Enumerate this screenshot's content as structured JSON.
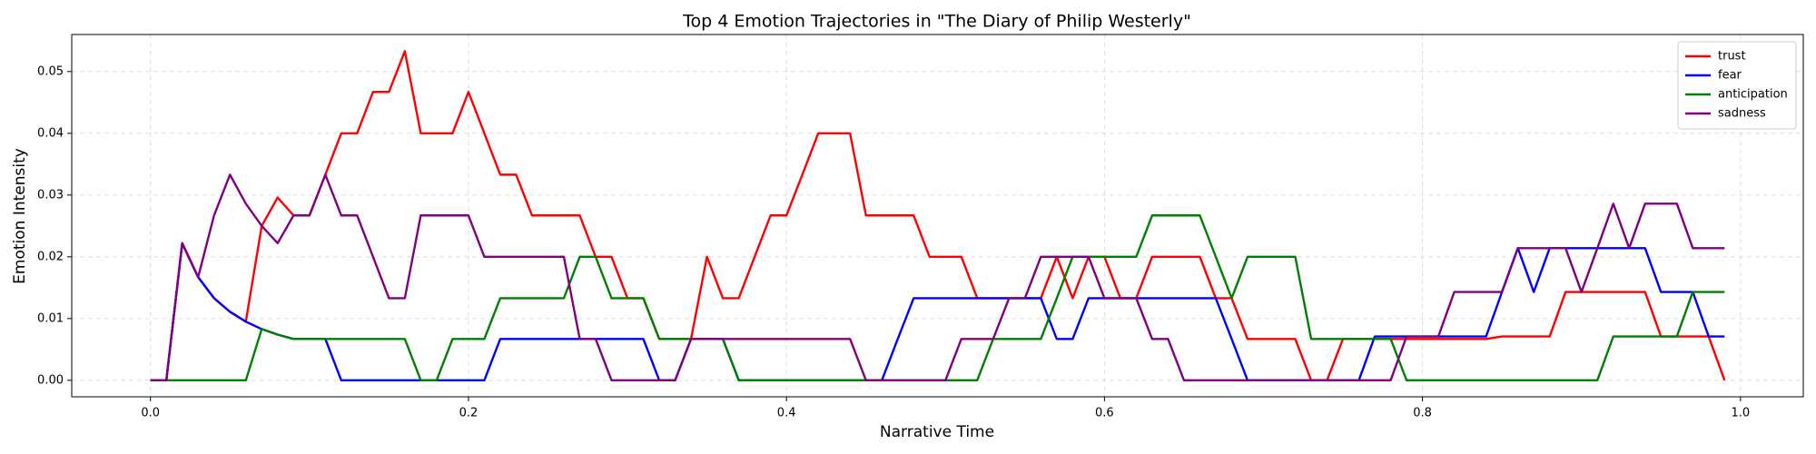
{
  "chart_data": {
    "type": "line",
    "title": "Top 4 Emotion Trajectories in \"The Diary of Philip Westerly\"",
    "xlabel": "Narrative Time",
    "ylabel": "Emotion Intensity",
    "x": [
      0,
      0.01,
      0.02,
      0.03,
      0.04,
      0.05,
      0.06,
      0.07,
      0.08,
      0.09,
      0.1,
      0.11,
      0.12,
      0.13,
      0.14,
      0.15,
      0.16,
      0.17,
      0.18,
      0.19,
      0.2,
      0.21,
      0.22,
      0.23,
      0.24,
      0.25,
      0.26,
      0.27,
      0.28,
      0.29,
      0.3,
      0.31,
      0.32,
      0.33,
      0.34,
      0.35,
      0.36,
      0.37,
      0.38,
      0.39,
      0.4,
      0.41,
      0.42,
      0.43,
      0.44,
      0.45,
      0.46,
      0.47,
      0.48,
      0.49,
      0.5,
      0.51,
      0.52,
      0.53,
      0.54,
      0.55,
      0.56,
      0.57,
      0.58,
      0.59,
      0.6,
      0.61,
      0.62,
      0.63,
      0.64,
      0.65,
      0.66,
      0.67,
      0.68,
      0.69,
      0.7,
      0.71,
      0.72,
      0.73,
      0.74,
      0.75,
      0.76,
      0.77,
      0.78,
      0.79,
      0.8,
      0.81,
      0.82,
      0.83,
      0.84,
      0.85,
      0.86,
      0.87,
      0.88,
      0.89,
      0.9,
      0.91,
      0.92,
      0.93,
      0.94,
      0.95,
      0.96,
      0.97,
      0.98,
      0.99
    ],
    "series": [
      {
        "name": "trust",
        "color": "#ff0000",
        "values": [
          0,
          0,
          0.0222,
          0.0167,
          0.0133,
          0.0111,
          0.0095,
          0.025,
          0.0296,
          0.0267,
          0.0267,
          0.0333,
          0.04,
          0.04,
          0.0467,
          0.0467,
          0.0533,
          0.04,
          0.04,
          0.04,
          0.0467,
          0.04,
          0.0333,
          0.0333,
          0.0267,
          0.0267,
          0.0267,
          0.0267,
          0.02,
          0.02,
          0.0133,
          0.0133,
          0.0067,
          0.0067,
          0.0067,
          0.02,
          0.0133,
          0.0133,
          0.02,
          0.0267,
          0.0267,
          0.0333,
          0.04,
          0.04,
          0.04,
          0.0267,
          0.0267,
          0.0267,
          0.0267,
          0.02,
          0.02,
          0.02,
          0.0133,
          0.0133,
          0.0133,
          0.0133,
          0.0133,
          0.02,
          0.0133,
          0.02,
          0.02,
          0.0133,
          0.0133,
          0.02,
          0.02,
          0.02,
          0.02,
          0.0133,
          0.0133,
          0.0067,
          0.0067,
          0.0067,
          0.0067,
          0,
          0,
          0.0067,
          0.0067,
          0.0067,
          0.0067,
          0.0067,
          0.0067,
          0.0067,
          0.0067,
          0.0067,
          0.0067,
          0.0071,
          0.0071,
          0.0071,
          0.0071,
          0.0143,
          0.0143,
          0.0143,
          0.0143,
          0.0143,
          0.0143,
          0.0071,
          0.0071,
          0.0071,
          0.0071,
          0
        ]
      },
      {
        "name": "fear",
        "color": "#0000ff",
        "values": [
          0,
          0,
          0.0222,
          0.0167,
          0.0133,
          0.0111,
          0.0095,
          0.0083,
          0.0074,
          0.0067,
          0.0067,
          0.0067,
          0,
          0,
          0,
          0,
          0,
          0,
          0,
          0,
          0,
          0,
          0.0067,
          0.0067,
          0.0067,
          0.0067,
          0.0067,
          0.0067,
          0.0067,
          0.0067,
          0.0067,
          0.0067,
          0,
          0,
          0.0067,
          0.0067,
          0.0067,
          0,
          0,
          0,
          0,
          0,
          0,
          0,
          0,
          0,
          0,
          0.0067,
          0.0133,
          0.0133,
          0.0133,
          0.0133,
          0.0133,
          0.0133,
          0.0133,
          0.0133,
          0.0133,
          0.0067,
          0.0067,
          0.0133,
          0.0133,
          0.0133,
          0.0133,
          0.0133,
          0.0133,
          0.0133,
          0.0133,
          0.0133,
          0.0067,
          0,
          0,
          0,
          0,
          0,
          0,
          0,
          0,
          0.0071,
          0.0071,
          0.0071,
          0.0071,
          0.0071,
          0.0071,
          0.0071,
          0.0071,
          0.0143,
          0.0214,
          0.0143,
          0.0214,
          0.0214,
          0.0214,
          0.0214,
          0.0214,
          0.0214,
          0.0214,
          0.0143,
          0.0143,
          0.0143,
          0.0071,
          0.0071
        ]
      },
      {
        "name": "anticipation",
        "color": "#008000",
        "values": [
          0,
          0,
          0,
          0,
          0,
          0,
          0,
          0.0083,
          0.0074,
          0.0067,
          0.0067,
          0.0067,
          0.0067,
          0.0067,
          0.0067,
          0.0067,
          0.0067,
          0,
          0,
          0.0067,
          0.0067,
          0.0067,
          0.0133,
          0.0133,
          0.0133,
          0.0133,
          0.0133,
          0.02,
          0.02,
          0.0133,
          0.0133,
          0.0133,
          0.0067,
          0.0067,
          0.0067,
          0.0067,
          0.0067,
          0,
          0,
          0,
          0,
          0,
          0,
          0,
          0,
          0,
          0,
          0,
          0,
          0,
          0,
          0,
          0,
          0.0067,
          0.0067,
          0.0067,
          0.0067,
          0.0133,
          0.02,
          0.02,
          0.02,
          0.02,
          0.02,
          0.0267,
          0.0267,
          0.0267,
          0.0267,
          0.02,
          0.0133,
          0.02,
          0.02,
          0.02,
          0.02,
          0.0067,
          0.0067,
          0.0067,
          0.0067,
          0.0067,
          0.0067,
          0,
          0,
          0,
          0,
          0,
          0,
          0,
          0,
          0,
          0,
          0,
          0,
          0,
          0.0071,
          0.0071,
          0.0071,
          0.0071,
          0.0071,
          0.0143,
          0.0143,
          0.0143
        ]
      },
      {
        "name": "sadness",
        "color": "#800080",
        "values": [
          0,
          0,
          0.0222,
          0.0167,
          0.0267,
          0.0333,
          0.0286,
          0.025,
          0.0222,
          0.0267,
          0.0267,
          0.0333,
          0.0267,
          0.0267,
          0.02,
          0.0133,
          0.0133,
          0.0267,
          0.0267,
          0.0267,
          0.0267,
          0.02,
          0.02,
          0.02,
          0.02,
          0.02,
          0.02,
          0.0067,
          0.0067,
          0,
          0,
          0,
          0,
          0,
          0.0067,
          0.0067,
          0.0067,
          0.0067,
          0.0067,
          0.0067,
          0.0067,
          0.0067,
          0.0067,
          0.0067,
          0.0067,
          0,
          0,
          0,
          0,
          0,
          0,
          0.0067,
          0.0067,
          0.0067,
          0.0133,
          0.0133,
          0.02,
          0.02,
          0.02,
          0.02,
          0.0133,
          0.0133,
          0.0133,
          0.0067,
          0.0067,
          0,
          0,
          0,
          0,
          0,
          0,
          0,
          0,
          0,
          0,
          0,
          0,
          0,
          0,
          0.0071,
          0.0071,
          0.0071,
          0.0143,
          0.0143,
          0.0143,
          0.0143,
          0.0214,
          0.0214,
          0.0214,
          0.0214,
          0.0143,
          0.0214,
          0.0286,
          0.0214,
          0.0286,
          0.0286,
          0.0286,
          0.0214,
          0.0214,
          0.0214
        ]
      }
    ],
    "xlim": [
      -0.0495,
      1.0395
    ],
    "ylim": [
      -0.00267,
      0.056
    ],
    "xticks": [
      {
        "value": 0,
        "label": "0.0"
      },
      0.2,
      0.4,
      0.6,
      0.8,
      {
        "value": 1,
        "label": "1.0"
      }
    ],
    "yticks": [
      {
        "value": 0,
        "label": "0.00"
      },
      {
        "value": 0.01,
        "label": "0.01"
      },
      {
        "value": 0.02,
        "label": "0.02"
      },
      {
        "value": 0.03,
        "label": "0.03"
      },
      {
        "value": 0.04,
        "label": "0.04"
      },
      {
        "value": 0.05,
        "label": "0.05"
      }
    ],
    "grid": true,
    "legend": "upper right"
  }
}
